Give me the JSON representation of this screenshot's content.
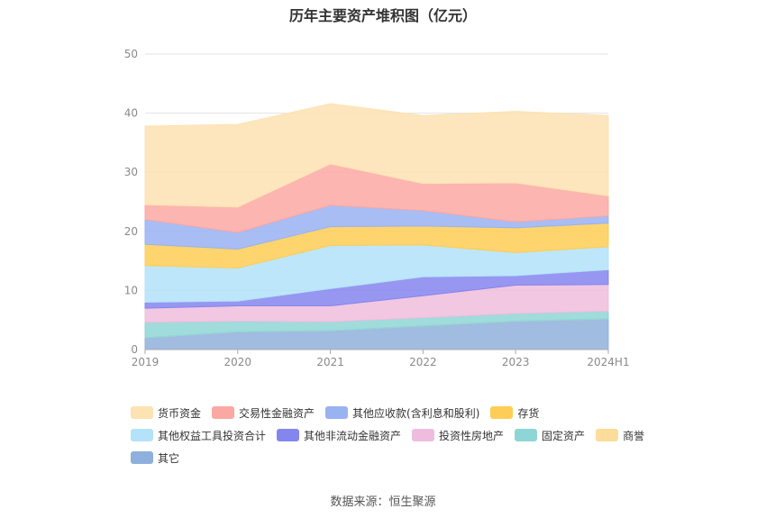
{
  "chart_data": {
    "type": "area",
    "stacked": true,
    "title": "历年主要资产堆积图（亿元）",
    "categories": [
      "2019",
      "2020",
      "2021",
      "2022",
      "2023",
      "2024H1"
    ],
    "y_ticks": [
      "0",
      "10",
      "20",
      "30",
      "40",
      "50"
    ],
    "ylim": [
      0,
      50
    ],
    "grid": true,
    "legend_position": "bottom",
    "series": [
      {
        "name": "其它",
        "color": "#8fb0dc",
        "values": [
          2.0,
          3.0,
          3.2,
          4.0,
          4.8,
          5.2
        ]
      },
      {
        "name": "商誉",
        "color": "#fddb9b",
        "values": [
          0,
          0,
          0,
          0,
          0,
          0
        ]
      },
      {
        "name": "固定资产",
        "color": "#8ed6d5",
        "values": [
          2.6,
          1.8,
          1.5,
          1.4,
          1.3,
          1.3
        ]
      },
      {
        "name": "投资性房地产",
        "color": "#eebddd",
        "values": [
          2.4,
          2.6,
          2.7,
          3.7,
          4.8,
          4.5
        ]
      },
      {
        "name": "其他非流动金融资产",
        "color": "#8585ee",
        "values": [
          1.0,
          0.8,
          2.9,
          3.2,
          1.6,
          2.5
        ]
      },
      {
        "name": "其他权益工具投资合计",
        "color": "#b3e2f9",
        "values": [
          6.2,
          5.6,
          7.3,
          5.4,
          3.9,
          3.9
        ]
      },
      {
        "name": "存货",
        "color": "#fdcd55",
        "values": [
          3.6,
          3.2,
          3.2,
          3.2,
          4.2,
          4.0
        ]
      },
      {
        "name": "其他应收款(含利息和股利)",
        "color": "#99b2f2",
        "values": [
          4.2,
          2.8,
          3.6,
          2.6,
          1.0,
          1.2
        ]
      },
      {
        "name": "交易性金融资产",
        "color": "#fba8a2",
        "values": [
          2.5,
          4.3,
          7.0,
          4.6,
          6.6,
          3.4
        ]
      },
      {
        "name": "货币资金",
        "color": "#fde2b2",
        "values": [
          13.3,
          14.0,
          10.2,
          11.5,
          12.1,
          13.6
        ]
      }
    ],
    "legend_order": [
      "货币资金",
      "交易性金融资产",
      "其他应收款(含利息和股利)",
      "存货",
      "其他权益工具投资合计",
      "其他非流动金融资产",
      "投资性房地产",
      "固定资产",
      "商誉",
      "其它"
    ]
  },
  "source": "数据来源：恒生聚源"
}
